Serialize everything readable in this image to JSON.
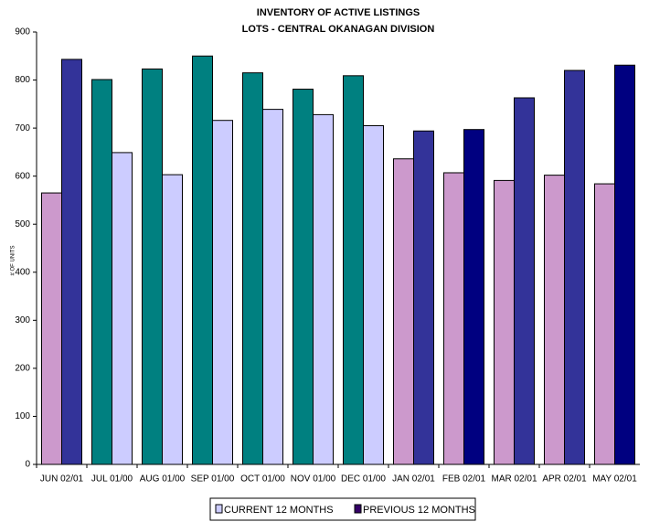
{
  "chart_data": {
    "type": "bar",
    "title": "INVENTORY OF ACTIVE LISTINGS",
    "subtitle": "LOTS - CENTRAL OKANAGAN DIVISION",
    "y_label": "# OF UNITS",
    "categories": [
      "JUN 02/01",
      "JUL 01/00",
      "AUG 01/00",
      "SEP 01/00",
      "OCT 01/00",
      "NOV 01/00",
      "DEC 01/00",
      "JAN 02/01",
      "FEB 02/01",
      "MAR 02/01",
      "APR 02/01",
      "MAY 02/01"
    ],
    "series": [
      {
        "name": "CURRENT 12 MONTHS",
        "color": "#ccccff",
        "colors": [
          "#cc99cc",
          "#008080",
          "#008080",
          "#008080",
          "#008080",
          "#008080",
          "#008080",
          "#cc99cc",
          "#cc99cc",
          "#cc99cc",
          "#cc99cc",
          "#cc99cc"
        ],
        "values": [
          565,
          801,
          823,
          850,
          815,
          781,
          809,
          636,
          607,
          591,
          602,
          584
        ]
      },
      {
        "name": "PREVIOUS 12 MONTHS",
        "color": "#330066",
        "colors": [
          "#333399",
          "#ccccff",
          "#ccccff",
          "#ccccff",
          "#ccccff",
          "#ccccff",
          "#ccccff",
          "#333399",
          "#000080",
          "#333399",
          "#333399",
          "#000080"
        ],
        "values": [
          843,
          649,
          603,
          716,
          739,
          728,
          705,
          694,
          697,
          763,
          820,
          831
        ]
      }
    ],
    "ylim": [
      0,
      900
    ],
    "yticks": [
      0,
      100,
      200,
      300,
      400,
      500,
      600,
      700,
      800,
      900
    ],
    "grid": false
  }
}
